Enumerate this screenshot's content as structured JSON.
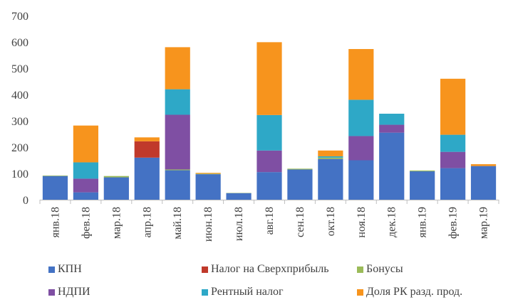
{
  "chart_data": {
    "type": "bar",
    "stacked": true,
    "categories": [
      "янв.18",
      "фев.18",
      "мар.18",
      "апр.18",
      "май.18",
      "июн.18",
      "июл.18",
      "авг.18",
      "сен.18",
      "окт.18",
      "ноя.18",
      "дек.18",
      "янв.19",
      "фев.19",
      "мар.19"
    ],
    "ylim": [
      0,
      700
    ],
    "yticks": [
      0,
      100,
      200,
      300,
      400,
      500,
      600,
      700
    ],
    "grid": false,
    "legend_position": "bottom",
    "series": [
      {
        "name": "КПН",
        "color": "#4472C4",
        "values": [
          90,
          28,
          85,
          160,
          112,
          97,
          25,
          105,
          115,
          155,
          150,
          255,
          108,
          120,
          128
        ]
      },
      {
        "name": "Налог на Сверхприбыль",
        "color": "#C0392B",
        "values": [
          0,
          0,
          0,
          62,
          0,
          0,
          0,
          0,
          0,
          0,
          0,
          0,
          0,
          0,
          0
        ]
      },
      {
        "name": "Бонусы",
        "color": "#9BBB59",
        "values": [
          2,
          0,
          5,
          0,
          3,
          2,
          1,
          0,
          3,
          5,
          0,
          0,
          3,
          0,
          0
        ]
      },
      {
        "name": "НДПИ",
        "color": "#7F4FA3",
        "values": [
          0,
          52,
          0,
          0,
          208,
          0,
          0,
          82,
          0,
          0,
          92,
          30,
          0,
          62,
          0
        ]
      },
      {
        "name": "Рентный налог",
        "color": "#2EA8C7",
        "values": [
          0,
          62,
          0,
          0,
          97,
          0,
          0,
          135,
          0,
          5,
          138,
          42,
          0,
          65,
          0
        ]
      },
      {
        "name": "Доля РК разд. прод.",
        "color": "#F7941D",
        "values": [
          0,
          140,
          0,
          15,
          160,
          3,
          0,
          277,
          0,
          22,
          193,
          0,
          0,
          213,
          7
        ]
      }
    ]
  }
}
